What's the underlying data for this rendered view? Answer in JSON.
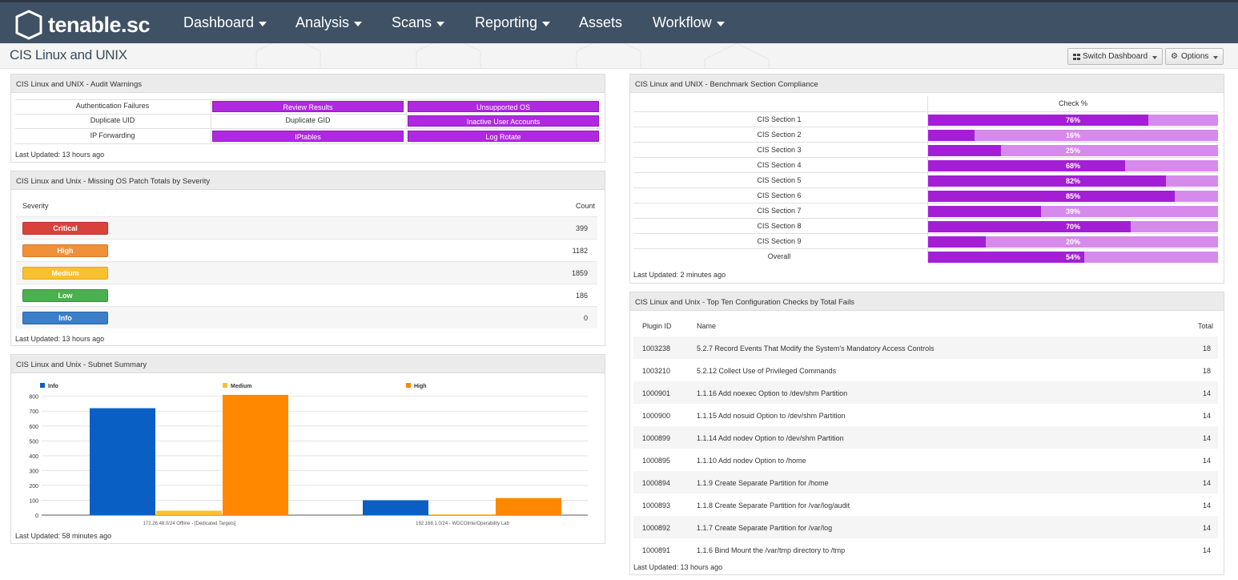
{
  "app": {
    "logo_text": "tenable.sc",
    "nav": [
      "Dashboard",
      "Analysis",
      "Scans",
      "Reporting",
      "Assets",
      "Workflow"
    ]
  },
  "page": {
    "title": "CIS Linux and UNIX",
    "switch_dashboard": "Switch Dashboard",
    "options": "Options"
  },
  "audit": {
    "title": "CIS Linux and UNIX - Audit Warnings",
    "cells": [
      "Authentication Failures",
      "Review Results",
      "Unsupported OS",
      "Duplicate UID",
      "Duplicate GID",
      "Inactive User Accounts",
      "IP Forwarding",
      "IPtables",
      "Log Rotate"
    ],
    "updated": "Last Updated: 13 hours ago"
  },
  "missing": {
    "title": "CIS Linux and Unix - Missing OS Patch Totals by Severity",
    "col_severity": "Severity",
    "col_count": "Count",
    "rows": [
      {
        "label": "Critical",
        "count": "399",
        "color": "#d9413a"
      },
      {
        "label": "High",
        "count": "1182",
        "color": "#f0913a"
      },
      {
        "label": "Medium",
        "count": "1859",
        "color": "#fbc02d"
      },
      {
        "label": "Low",
        "count": "186",
        "color": "#4caf50"
      },
      {
        "label": "Info",
        "count": "0",
        "color": "#3a7fc8"
      }
    ],
    "updated": "Last Updated: 13 hours ago"
  },
  "subnet": {
    "title": "CIS Linux and Unix - Subnet Summary",
    "updated": "Last Updated: 58 minutes ago"
  },
  "chart_data": {
    "type": "bar",
    "categories": [
      "172.26.48.0/24 Offline - [Dedicated Targets]",
      "192.168.1.0/24 - WDCOInterOperability Lab"
    ],
    "series": [
      {
        "name": "Info",
        "values": [
          720,
          100
        ],
        "color": "#0a5fc4"
      },
      {
        "name": "Medium",
        "values": [
          30,
          5
        ],
        "color": "#fbc02d"
      },
      {
        "name": "High",
        "values": [
          810,
          115
        ],
        "color": "#ff8800"
      }
    ],
    "yticks": [
      "0",
      "100",
      "200",
      "300",
      "400",
      "500",
      "600",
      "700",
      "800"
    ],
    "ylim": [
      0,
      820
    ],
    "grid": true,
    "legend": "top"
  },
  "bench": {
    "title": "CIS Linux and UNIX - Benchmark Section Compliance",
    "col_check": "Check %",
    "rows": [
      {
        "label": "CIS Section 1",
        "value": 76,
        "text": "76%"
      },
      {
        "label": "CIS Section 2",
        "value": 16,
        "text": "16%"
      },
      {
        "label": "CIS Section 3",
        "value": 25,
        "text": "25%"
      },
      {
        "label": "CIS Section 4",
        "value": 68,
        "text": "68%"
      },
      {
        "label": "CIS Section 5",
        "value": 82,
        "text": "82%"
      },
      {
        "label": "CIS Section 6",
        "value": 85,
        "text": "85%"
      },
      {
        "label": "CIS Section 7",
        "value": 39,
        "text": "39%"
      },
      {
        "label": "CIS Section 8",
        "value": 70,
        "text": "70%"
      },
      {
        "label": "CIS Section 9",
        "value": 20,
        "text": "20%"
      },
      {
        "label": "Overall",
        "value": 54,
        "text": "54%"
      }
    ],
    "updated": "Last Updated: 2 minutes ago"
  },
  "topten": {
    "title": "CIS Linux and Unix - Top Ten Configuration Checks by Total Fails",
    "col_plugin": "Plugin ID",
    "col_name": "Name",
    "col_total": "Total",
    "rows": [
      {
        "id": "1003238",
        "name": "5.2.7 Record Events That Modify the System's Mandatory Access Controls",
        "total": "18"
      },
      {
        "id": "1003210",
        "name": "5.2.12 Collect Use of Privileged Commands",
        "total": "18"
      },
      {
        "id": "1000901",
        "name": "1.1.16 Add noexec Option to /dev/shm Partition",
        "total": "14"
      },
      {
        "id": "1000900",
        "name": "1.1.15 Add nosuid Option to /dev/shm Partition",
        "total": "14"
      },
      {
        "id": "1000899",
        "name": "1.1.14 Add nodev Option to /dev/shm Partition",
        "total": "14"
      },
      {
        "id": "1000895",
        "name": "1.1.10 Add nodev Option to /home",
        "total": "14"
      },
      {
        "id": "1000894",
        "name": "1.1.9 Create Separate Partition for /home",
        "total": "14"
      },
      {
        "id": "1000893",
        "name": "1.1.8 Create Separate Partition for /var/log/audit",
        "total": "14"
      },
      {
        "id": "1000892",
        "name": "1.1.7 Create Separate Partition for /var/log",
        "total": "14"
      },
      {
        "id": "1000891",
        "name": "1.1.6 Bind Mount the /var/tmp directory to /tmp",
        "total": "14"
      }
    ],
    "updated": "Last Updated: 13 hours ago"
  }
}
